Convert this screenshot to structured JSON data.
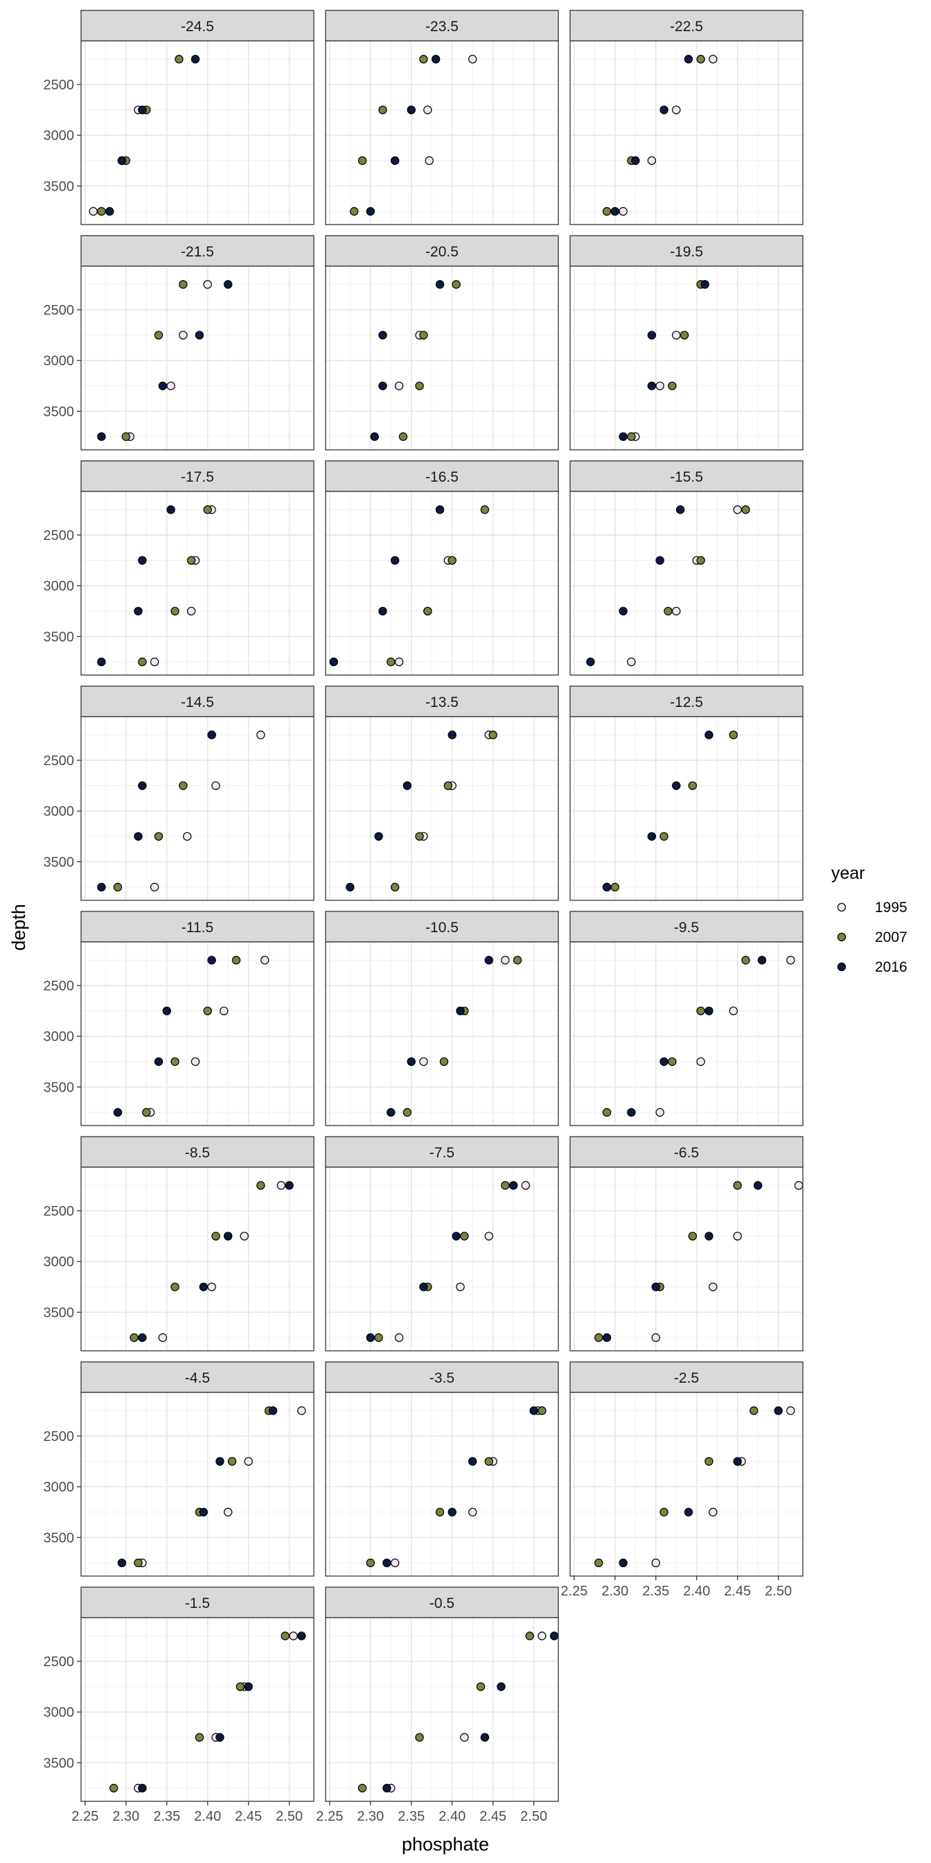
{
  "chart_data": {
    "type": "scatter",
    "facet_variable": "latitude",
    "xlabel": "phosphate",
    "ylabel": "depth",
    "xlim": [
      2.245,
      2.53
    ],
    "ylim": [
      3880,
      2070
    ],
    "y_reversed": true,
    "x_ticks": [
      2.25,
      2.3,
      2.35,
      2.4,
      2.45,
      2.5
    ],
    "x_tick_labels": [
      "2.25",
      "2.30",
      "2.35",
      "2.40",
      "2.45",
      "2.50"
    ],
    "y_ticks": [
      2500,
      3000,
      3500
    ],
    "y_tick_labels": [
      "2500",
      "3000",
      "3500"
    ],
    "depths": [
      2250,
      2750,
      3250,
      3750
    ],
    "grid": true,
    "legend_title": "year",
    "legend_position": "right",
    "series": [
      {
        "name": "1995",
        "fill": "#f2e6f2"
      },
      {
        "name": "2007",
        "fill": "#79843f"
      },
      {
        "name": "2016",
        "fill": "#0b1a45"
      }
    ],
    "facets": [
      {
        "label": "-24.5",
        "values": {
          "1995": [
            null,
            2.315,
            2.295,
            2.26
          ],
          "2007": [
            2.365,
            2.325,
            2.3,
            2.27
          ],
          "2016": [
            2.385,
            2.32,
            2.295,
            2.28
          ]
        }
      },
      {
        "label": "-23.5",
        "values": {
          "1995": [
            2.425,
            2.37,
            2.372,
            null
          ],
          "2007": [
            2.365,
            2.315,
            2.29,
            2.28
          ],
          "2016": [
            2.38,
            2.35,
            2.33,
            2.3
          ]
        }
      },
      {
        "label": "-22.5",
        "values": {
          "1995": [
            2.42,
            2.375,
            2.345,
            2.31
          ],
          "2007": [
            2.405,
            null,
            2.32,
            2.29
          ],
          "2016": [
            2.39,
            2.36,
            2.325,
            2.3
          ]
        }
      },
      {
        "label": "-21.5",
        "values": {
          "1995": [
            2.4,
            2.37,
            2.355,
            2.305
          ],
          "2007": [
            2.37,
            2.34,
            null,
            2.3
          ],
          "2016": [
            2.425,
            2.39,
            2.345,
            2.27
          ]
        }
      },
      {
        "label": "-20.5",
        "values": {
          "1995": [
            null,
            2.36,
            2.335,
            null
          ],
          "2007": [
            2.405,
            2.365,
            2.36,
            2.34
          ],
          "2016": [
            2.385,
            2.315,
            2.315,
            2.305
          ]
        }
      },
      {
        "label": "-19.5",
        "values": {
          "1995": [
            2.41,
            2.375,
            2.355,
            2.325
          ],
          "2007": [
            2.405,
            2.385,
            2.37,
            2.32
          ],
          "2016": [
            2.41,
            2.345,
            2.345,
            2.31
          ]
        }
      },
      {
        "label": "-17.5",
        "values": {
          "1995": [
            2.405,
            2.385,
            2.38,
            2.335
          ],
          "2007": [
            2.4,
            2.38,
            2.36,
            2.32
          ],
          "2016": [
            2.355,
            2.32,
            2.315,
            2.27
          ]
        }
      },
      {
        "label": "-16.5",
        "values": {
          "1995": [
            null,
            2.395,
            2.37,
            2.335
          ],
          "2007": [
            2.44,
            2.4,
            2.37,
            2.325
          ],
          "2016": [
            2.385,
            2.33,
            2.315,
            2.255
          ]
        }
      },
      {
        "label": "-15.5",
        "values": {
          "1995": [
            2.45,
            2.4,
            2.375,
            2.32
          ],
          "2007": [
            2.46,
            2.405,
            2.365,
            null
          ],
          "2016": [
            2.38,
            2.355,
            2.31,
            2.27
          ]
        }
      },
      {
        "label": "-14.5",
        "values": {
          "1995": [
            2.465,
            2.41,
            2.375,
            2.335
          ],
          "2007": [
            2.405,
            2.37,
            2.34,
            2.29
          ],
          "2016": [
            2.405,
            2.32,
            2.315,
            2.27
          ]
        }
      },
      {
        "label": "-13.5",
        "values": {
          "1995": [
            2.445,
            2.4,
            2.365,
            null
          ],
          "2007": [
            2.45,
            2.395,
            2.36,
            2.33
          ],
          "2016": [
            2.4,
            2.345,
            2.31,
            2.275
          ]
        }
      },
      {
        "label": "-12.5",
        "values": {
          "1995": [
            null,
            null,
            null,
            2.29
          ],
          "2007": [
            2.445,
            2.395,
            2.36,
            2.3
          ],
          "2016": [
            2.415,
            2.375,
            2.345,
            2.29
          ]
        }
      },
      {
        "label": "-11.5",
        "values": {
          "1995": [
            2.47,
            2.42,
            2.385,
            2.33
          ],
          "2007": [
            2.435,
            2.4,
            2.36,
            2.325
          ],
          "2016": [
            2.405,
            2.35,
            2.34,
            2.29
          ]
        }
      },
      {
        "label": "-10.5",
        "values": {
          "1995": [
            2.465,
            null,
            2.365,
            null
          ],
          "2007": [
            2.48,
            2.415,
            2.39,
            2.345
          ],
          "2016": [
            2.445,
            2.41,
            2.35,
            2.325
          ]
        }
      },
      {
        "label": "-9.5",
        "values": {
          "1995": [
            2.515,
            2.445,
            2.405,
            2.355
          ],
          "2007": [
            2.46,
            2.405,
            2.37,
            2.29
          ],
          "2016": [
            2.48,
            2.415,
            2.36,
            2.32
          ]
        }
      },
      {
        "label": "-8.5",
        "values": {
          "1995": [
            2.49,
            2.445,
            2.405,
            2.345
          ],
          "2007": [
            2.465,
            2.41,
            2.36,
            2.31
          ],
          "2016": [
            2.5,
            2.425,
            2.395,
            2.32
          ]
        }
      },
      {
        "label": "-7.5",
        "values": {
          "1995": [
            2.49,
            2.445,
            2.41,
            2.335
          ],
          "2007": [
            2.465,
            2.415,
            2.37,
            2.31
          ],
          "2016": [
            2.475,
            2.405,
            2.365,
            2.3
          ]
        }
      },
      {
        "label": "-6.5",
        "values": {
          "1995": [
            2.525,
            2.45,
            2.42,
            2.35
          ],
          "2007": [
            2.45,
            2.395,
            2.355,
            2.28
          ],
          "2016": [
            2.475,
            2.415,
            2.35,
            2.29
          ]
        }
      },
      {
        "label": "-4.5",
        "values": {
          "1995": [
            2.515,
            2.45,
            2.425,
            2.32
          ],
          "2007": [
            2.475,
            2.43,
            2.39,
            2.315
          ],
          "2016": [
            2.48,
            2.415,
            2.395,
            2.295
          ]
        }
      },
      {
        "label": "-3.5",
        "values": {
          "1995": [
            2.505,
            2.45,
            2.425,
            2.33
          ],
          "2007": [
            2.51,
            2.445,
            2.385,
            2.3
          ],
          "2016": [
            2.5,
            2.425,
            2.4,
            2.32
          ]
        }
      },
      {
        "label": "-2.5",
        "values": {
          "1995": [
            2.515,
            2.455,
            2.42,
            2.35
          ],
          "2007": [
            2.47,
            2.415,
            2.36,
            2.28
          ],
          "2016": [
            2.5,
            2.45,
            2.39,
            2.31
          ]
        }
      },
      {
        "label": "-1.5",
        "values": {
          "1995": [
            2.505,
            2.445,
            2.41,
            2.315
          ],
          "2007": [
            2.495,
            2.44,
            2.39,
            2.285
          ],
          "2016": [
            2.515,
            2.45,
            2.415,
            2.32
          ]
        }
      },
      {
        "label": "-0.5",
        "values": {
          "1995": [
            2.51,
            null,
            2.415,
            2.325
          ],
          "2007": [
            2.495,
            2.435,
            2.36,
            2.29
          ],
          "2016": [
            2.525,
            2.46,
            2.44,
            2.32
          ]
        }
      }
    ]
  }
}
